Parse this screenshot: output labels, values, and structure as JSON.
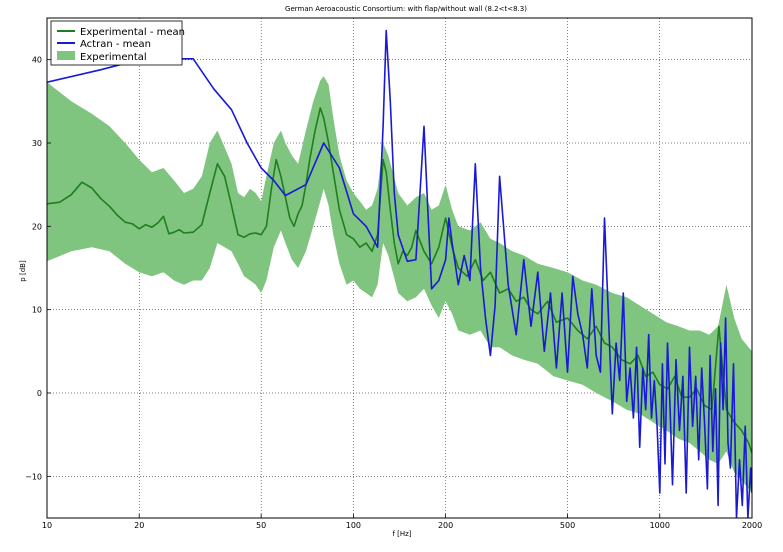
{
  "chart_data": {
    "type": "line",
    "title": "German Aeroacoustic Consortium: with flap/without wall (8.2<t<8.3)",
    "xlabel": "f [Hz]",
    "ylabel": "p [dB]",
    "x_scale": "log",
    "xlim": [
      10,
      2000
    ],
    "ylim": [
      -15,
      45
    ],
    "grid": true,
    "legend_position": "top-left",
    "x_ticks": [
      {
        "value": 10,
        "label": "10"
      },
      {
        "value": 20,
        "label": "20"
      },
      {
        "value": 50,
        "label": "50"
      },
      {
        "value": 100,
        "label": "100"
      },
      {
        "value": 200,
        "label": "200"
      },
      {
        "value": 500,
        "label": "500"
      },
      {
        "value": 1000,
        "label": "1000"
      },
      {
        "value": 2000,
        "label": "2000"
      }
    ],
    "y_ticks": [
      {
        "value": -10,
        "label": "−10"
      },
      {
        "value": 0,
        "label": "0"
      },
      {
        "value": 10,
        "label": "10"
      },
      {
        "value": 20,
        "label": "20"
      },
      {
        "value": 30,
        "label": "30"
      },
      {
        "value": 40,
        "label": "40"
      }
    ],
    "colors": {
      "experimental_mean": "#1f7f1f",
      "actran_mean": "#1a1ad6",
      "experimental_band": "#7fc47f"
    },
    "series": [
      {
        "name": "Experimental - mean",
        "kind": "line",
        "color": "#1f7f1f",
        "x": [
          10,
          11,
          12,
          13,
          14,
          15,
          16,
          17,
          18,
          19,
          20,
          21,
          22,
          23,
          24,
          25,
          26,
          27,
          28,
          30,
          32,
          34,
          36,
          38,
          40,
          42,
          44,
          46,
          48,
          50,
          52,
          54,
          56,
          58,
          60,
          62,
          64,
          66,
          68,
          70,
          72,
          75,
          78,
          80,
          83,
          86,
          90,
          95,
          100,
          105,
          110,
          115,
          120,
          125,
          128,
          132,
          136,
          140,
          145,
          150,
          155,
          160,
          170,
          180,
          190,
          200,
          210,
          220,
          235,
          250,
          265,
          280,
          300,
          320,
          340,
          360,
          380,
          400,
          430,
          460,
          500,
          540,
          580,
          620,
          660,
          700,
          750,
          800,
          850,
          900,
          950,
          1000,
          1060,
          1120,
          1180,
          1250,
          1320,
          1400,
          1480,
          1560,
          1650,
          1750,
          1850,
          1950,
          2000
        ],
        "y": [
          22.7,
          22.9,
          23.8,
          25.3,
          24.6,
          23.3,
          22.4,
          21.3,
          20.5,
          20.3,
          19.7,
          20.2,
          19.9,
          20.4,
          21.2,
          19.1,
          19.3,
          19.6,
          19.2,
          19.3,
          20.2,
          24.0,
          27.5,
          26.0,
          22.5,
          19.0,
          18.7,
          19.1,
          19.2,
          19.0,
          20.0,
          24.5,
          28.0,
          26.0,
          23.5,
          21.0,
          20.0,
          21.5,
          22.5,
          25.0,
          28.0,
          31.5,
          34.2,
          33.0,
          30.0,
          26.5,
          22.0,
          19.0,
          18.5,
          17.5,
          18.0,
          17.0,
          19.0,
          28.0,
          26.5,
          22.0,
          18.0,
          15.5,
          17.0,
          16.5,
          17.5,
          19.5,
          17.0,
          15.5,
          17.5,
          21.0,
          17.5,
          15.0,
          14.0,
          16.0,
          13.5,
          14.5,
          12.0,
          12.5,
          11.0,
          11.5,
          10.0,
          9.5,
          11.0,
          8.5,
          9.0,
          7.5,
          6.5,
          8.0,
          6.0,
          5.5,
          4.0,
          3.5,
          4.5,
          2.0,
          2.5,
          1.0,
          0.5,
          2.0,
          -0.5,
          -0.5,
          0.5,
          -1.5,
          -2.0,
          8.0,
          -2.0,
          -3.5,
          -4.5,
          -6.0,
          -7.2
        ]
      },
      {
        "name": "Actran - mean",
        "kind": "line",
        "color": "#1a1ad6",
        "x": [
          10,
          15,
          20,
          25,
          30,
          35,
          40,
          45,
          50,
          55,
          60,
          70,
          80,
          90,
          100,
          110,
          120,
          125,
          128,
          132,
          136,
          140,
          150,
          160,
          165,
          170,
          175,
          180,
          190,
          200,
          205,
          210,
          220,
          230,
          240,
          250,
          260,
          270,
          280,
          290,
          300,
          320,
          340,
          360,
          380,
          400,
          420,
          440,
          460,
          480,
          500,
          520,
          540,
          560,
          580,
          600,
          620,
          640,
          660,
          680,
          700,
          720,
          740,
          760,
          780,
          800,
          820,
          840,
          860,
          880,
          900,
          920,
          940,
          960,
          980,
          1000,
          1020,
          1040,
          1060,
          1080,
          1100,
          1130,
          1160,
          1190,
          1220,
          1250,
          1280,
          1310,
          1340,
          1370,
          1400,
          1430,
          1460,
          1490,
          1520,
          1550,
          1580,
          1610,
          1640,
          1670,
          1700,
          1740,
          1780,
          1820,
          1860,
          1900,
          1940,
          1980,
          2000
        ],
        "y": [
          37.3,
          38.8,
          40.0,
          40.1,
          40.1,
          36.5,
          34.0,
          30.0,
          27.0,
          25.5,
          23.7,
          25.0,
          30.0,
          27.0,
          21.5,
          20.0,
          17.5,
          32.0,
          43.5,
          35.0,
          24.0,
          19.0,
          15.8,
          16.0,
          24.0,
          32.0,
          22.0,
          12.5,
          13.5,
          16.0,
          21.0,
          18.0,
          13.0,
          16.5,
          13.5,
          27.5,
          15.0,
          9.0,
          4.5,
          10.5,
          26.0,
          13.0,
          7.0,
          16.0,
          8.0,
          14.5,
          5.0,
          12.0,
          3.0,
          12.0,
          2.5,
          14.0,
          9.5,
          7.0,
          3.0,
          12.5,
          4.5,
          2.5,
          21.0,
          9.0,
          -2.5,
          6.0,
          1.5,
          12.0,
          -1.0,
          3.0,
          -3.0,
          5.5,
          -6.5,
          3.0,
          -2.0,
          7.0,
          -3.0,
          1.5,
          -4.0,
          -12.0,
          3.5,
          -8.5,
          6.0,
          -1.5,
          -11.0,
          4.0,
          -4.5,
          2.0,
          -12.0,
          5.5,
          -4.0,
          2.0,
          -8.0,
          3.0,
          -3.5,
          -11.5,
          4.5,
          -7.0,
          0.5,
          -13.5,
          6.0,
          -2.0,
          9.0,
          -6.0,
          -9.0,
          3.5,
          -15.0,
          -8.0,
          -13.5,
          -4.0,
          -15.0,
          -9.0,
          -12.0
        ]
      },
      {
        "name": "Experimental",
        "kind": "band",
        "color": "#7fc47f",
        "x": [
          10,
          12,
          14,
          16,
          18,
          20,
          22,
          24,
          26,
          28,
          30,
          32,
          34,
          36,
          38,
          40,
          42,
          44,
          46,
          48,
          50,
          52,
          55,
          58,
          60,
          63,
          66,
          70,
          74,
          78,
          80,
          83,
          86,
          90,
          95,
          100,
          105,
          110,
          115,
          120,
          125,
          130,
          140,
          150,
          160,
          170,
          180,
          190,
          200,
          210,
          220,
          240,
          260,
          280,
          300,
          330,
          360,
          400,
          450,
          500,
          560,
          620,
          700,
          780,
          860,
          950,
          1050,
          1150,
          1250,
          1350,
          1450,
          1550,
          1650,
          1750,
          1850,
          1950,
          2000
        ],
        "upper": [
          37.3,
          35.0,
          33.5,
          32.0,
          30.0,
          28.0,
          26.5,
          27.0,
          25.5,
          24.0,
          24.5,
          26.0,
          30.0,
          31.5,
          29.5,
          27.5,
          24.0,
          23.5,
          24.5,
          24.0,
          23.0,
          26.0,
          30.0,
          31.5,
          30.0,
          28.5,
          27.5,
          31.5,
          35.0,
          37.5,
          38.0,
          37.0,
          33.0,
          28.5,
          25.5,
          24.0,
          23.0,
          22.0,
          22.5,
          24.5,
          30.0,
          28.5,
          24.0,
          22.5,
          23.5,
          24.0,
          22.0,
          22.5,
          25.0,
          22.0,
          20.0,
          19.5,
          20.5,
          18.5,
          18.0,
          17.0,
          16.5,
          15.5,
          15.0,
          14.5,
          13.5,
          13.0,
          12.0,
          11.5,
          10.5,
          9.5,
          8.5,
          8.0,
          7.5,
          7.5,
          7.0,
          8.0,
          13.0,
          9.0,
          6.5,
          5.5,
          5.0
        ],
        "lower": [
          15.8,
          17.0,
          17.5,
          17.0,
          15.5,
          14.5,
          14.0,
          14.5,
          13.5,
          13.0,
          13.5,
          13.5,
          15.0,
          18.0,
          17.5,
          17.0,
          15.5,
          14.0,
          13.5,
          13.0,
          12.0,
          13.5,
          17.5,
          19.5,
          18.0,
          16.0,
          15.0,
          17.0,
          20.0,
          23.0,
          24.5,
          22.5,
          19.0,
          15.5,
          13.0,
          13.5,
          12.5,
          12.0,
          11.5,
          13.0,
          18.0,
          16.5,
          12.0,
          11.0,
          11.5,
          12.5,
          10.5,
          9.0,
          11.0,
          9.5,
          7.5,
          7.0,
          7.5,
          5.5,
          5.5,
          4.5,
          4.0,
          3.5,
          2.0,
          1.5,
          1.0,
          0.0,
          -1.0,
          -2.0,
          -2.5,
          -3.5,
          -4.5,
          -5.5,
          -6.0,
          -7.0,
          -8.0,
          -8.5,
          -7.0,
          -9.5,
          -10.5,
          -11.5,
          -12.0
        ]
      }
    ]
  }
}
